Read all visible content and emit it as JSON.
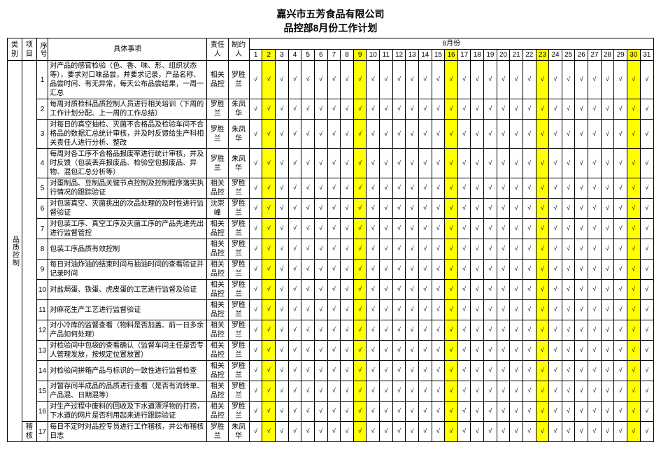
{
  "title1": "嘉兴市五芳食品有限公司",
  "title2": "品控部8月份工作计划",
  "month_header": "8月份",
  "headers": {
    "category": "类别",
    "project": "项目",
    "seq": "序号",
    "item": "具体事项",
    "responsible": "责任人",
    "maker": "制约人"
  },
  "days": [
    "1",
    "2",
    "3",
    "4",
    "5",
    "6",
    "7",
    "8",
    "9",
    "10",
    "11",
    "12",
    "13",
    "14",
    "15",
    "16",
    "17",
    "18",
    "19",
    "20",
    "21",
    "22",
    "23",
    "24",
    "25",
    "26",
    "27",
    "28",
    "29",
    "30",
    "31"
  ],
  "highlight_days": [
    2,
    9,
    16,
    23,
    30
  ],
  "category_label": "品质控制",
  "project_label2": "稽核",
  "rows": [
    {
      "n": "1",
      "item": "对产品的感官检验（色、香、味、形、组织状态等），要求对口味品尝，并要求记录，产品名称、品尝时间、有无异常，每天公布品尝结果，一周一汇总",
      "resp": "相关品控",
      "maker": "罗胜兰"
    },
    {
      "n": "2",
      "item": "每周对质检科品质控制人员进行相关培训（下周的工作计划分配、上一周的工作总结）",
      "resp": "罗胜兰",
      "maker": "朱凤华"
    },
    {
      "n": "3",
      "item": "对每日的真空抽检、灭菌不合格品及检验车间不合格品的数据汇总统计审核，并及时反馈给生产科相关责任人进行分析、整改",
      "resp": "罗胜兰",
      "maker": "朱凤华"
    },
    {
      "n": "4",
      "item": "每周对各工序不合格品报废率进行统计审核，并及时反馈（包装丢弃报废品、检验空包报废品、异物、混包汇总分析等）",
      "resp": "罗胜兰",
      "maker": "朱凤华"
    },
    {
      "n": "5",
      "item": "对蛋制品、豆制品关键节点控制及控制程序落实执行情况的跟踪验证",
      "resp": "相关品控",
      "maker": "罗胜兰"
    },
    {
      "n": "6",
      "item": "对包装真空、灭菌挑出的次品处理的及时性进行监督验证",
      "resp": "沈崇峰",
      "maker": "罗胜兰"
    },
    {
      "n": "7",
      "item": "对包装工序、真空工序及灭菌工序的产品先进先出进行监督管控",
      "resp": "相关品控",
      "maker": "罗胜兰"
    },
    {
      "n": "8",
      "item": "包装工序品质有效控制",
      "resp": "相关品控",
      "maker": "罗胜兰"
    },
    {
      "n": "9",
      "item": "每日对油炸油的结束时间与抽油时间的查看验证并记录时间",
      "resp": "相关品控",
      "maker": "罗胜兰"
    },
    {
      "n": "10",
      "item": "对盐焗蛋、铁蛋、虎皮蛋的工艺进行监督及验证",
      "resp": "相关品控",
      "maker": "罗胜兰"
    },
    {
      "n": "11",
      "item": "对麻花生产工艺进行监督验证",
      "resp": "相关品控",
      "maker": "罗胜兰"
    },
    {
      "n": "12",
      "item": "对小冷库的监督查看（物料是否加盖、前一日多余产品如何处理）",
      "resp": "相关品控",
      "maker": "罗胜兰"
    },
    {
      "n": "13",
      "item": "对检验间中包袋的查看确认（监督车间主任是否专人管理发放，按规定位置放置）",
      "resp": "相关品控",
      "maker": "罗胜兰"
    },
    {
      "n": "14",
      "item": "对检验间拼箱产品与标识的一致性进行监督检查",
      "resp": "相关品控",
      "maker": "罗胜兰"
    },
    {
      "n": "15",
      "item": "对暂存间半成品的品质进行查看（是否有流转单、产品混、日期混等）",
      "resp": "相关品控",
      "maker": "罗胜兰"
    },
    {
      "n": "16",
      "item": "对生产过程中废料的回收及下水道漂浮物的打捞，下水道的网片是否利用起来进行跟踪验证",
      "resp": "相关品控",
      "maker": "罗胜兰"
    },
    {
      "n": "17",
      "item": "每日不定时对品控专员进行工作稽核，并公布稽核日志",
      "resp": "罗胜兰",
      "maker": "朱凤华"
    }
  ],
  "check": "√",
  "colors": {
    "highlight": "#ffff00",
    "border": "#000000",
    "bg": "#ffffff"
  }
}
